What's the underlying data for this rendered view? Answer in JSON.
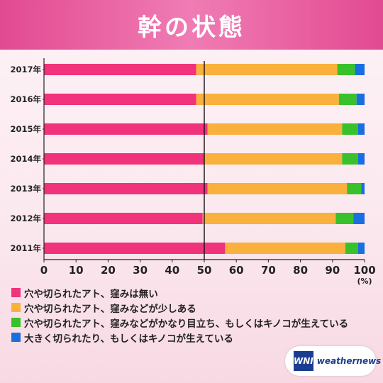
{
  "chart_data": {
    "type": "bar",
    "orientation": "horizontal",
    "stacked": true,
    "title": "幹の状態",
    "xlabel": "",
    "ylabel": "",
    "x_unit": "(%)",
    "xlim": [
      0,
      100
    ],
    "xticks": [
      0,
      10,
      20,
      30,
      40,
      50,
      60,
      70,
      80,
      90,
      100
    ],
    "reference_line": 50,
    "categories": [
      "2017年",
      "2016年",
      "2015年",
      "2014年",
      "2013年",
      "2012年",
      "2011年"
    ],
    "series": [
      {
        "name": "穴や切られたアト、窪みは無い",
        "color": "#f0337a",
        "values": [
          47.5,
          47.5,
          51,
          50,
          51,
          49.5,
          56.5
        ]
      },
      {
        "name": "穴や切られたアト、窪みなどが少しある",
        "color": "#f9b03c",
        "values": [
          44,
          44.5,
          42,
          43,
          43.5,
          41.5,
          37.5
        ]
      },
      {
        "name": "穴や切られたアト、窪みなどがかなり目立ち、もしくはキノコが生えている",
        "color": "#39c12b",
        "values": [
          5.5,
          5.5,
          5,
          5,
          4.5,
          5.5,
          4
        ]
      },
      {
        "name": "大きく切られたり、もしくはキノコが生えている",
        "color": "#1a6fe0",
        "values": [
          3,
          2.5,
          2,
          2,
          1,
          3.5,
          2
        ]
      }
    ],
    "legend_position": "bottom-left",
    "grid": false
  },
  "logo": {
    "mark": "WNI",
    "text": "weathernews"
  }
}
